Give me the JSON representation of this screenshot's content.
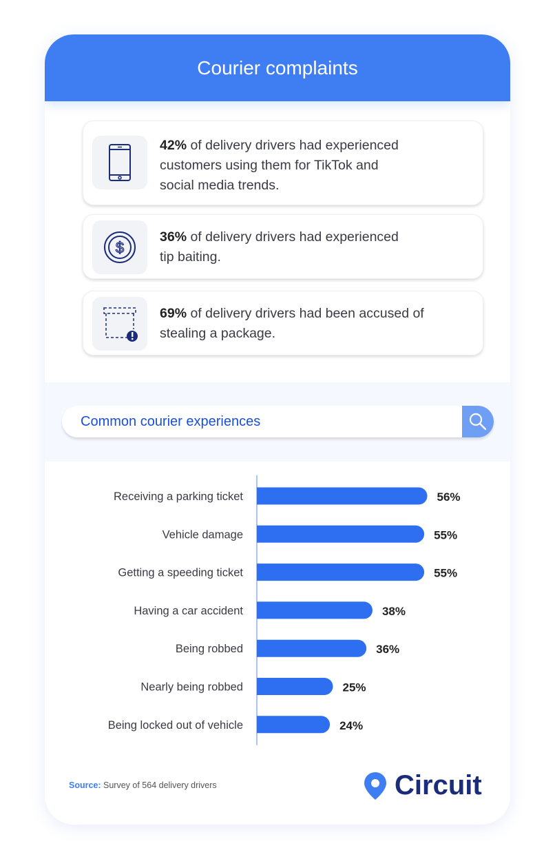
{
  "header": {
    "title": "Courier complaints"
  },
  "stats": [
    {
      "icon": "smartphone-icon",
      "value": "42%",
      "line1": " of delivery drivers had experienced",
      "line2": "customers using them for TikTok and",
      "line3": "social media trends."
    },
    {
      "icon": "dollar-coin-icon",
      "value": "36%",
      "line1": " of delivery drivers had experienced",
      "line2": "tip baiting.",
      "line3": ""
    },
    {
      "icon": "missing-package-icon",
      "value": "69%",
      "line1": " of delivery drivers had been accused of",
      "line2": "stealing a package.",
      "line3": ""
    }
  ],
  "search": {
    "label": "Common courier experiences",
    "icon": "search-icon"
  },
  "chart_data": {
    "type": "bar",
    "orientation": "horizontal",
    "title": "Common courier experiences",
    "categories": [
      "Receiving a parking ticket",
      "Vehicle damage",
      "Getting a speeding ticket",
      "Having a car accident",
      "Being robbed",
      "Nearly being robbed",
      "Being locked out of vehicle"
    ],
    "values": [
      56,
      55,
      55,
      38,
      36,
      25,
      24
    ],
    "value_labels": [
      "56%",
      "55%",
      "55%",
      "38%",
      "36%",
      "25%",
      "24%"
    ],
    "unit": "%",
    "grid": false,
    "bar_color": "#2d6ff0"
  },
  "footer": {
    "source_label": "Source:",
    "source_text": " Survey of 564 delivery drivers",
    "brand": "Circuit"
  },
  "colors": {
    "accent": "#3f7ef2",
    "navy": "#1a2c7a",
    "bar": "#2d6ff0"
  }
}
